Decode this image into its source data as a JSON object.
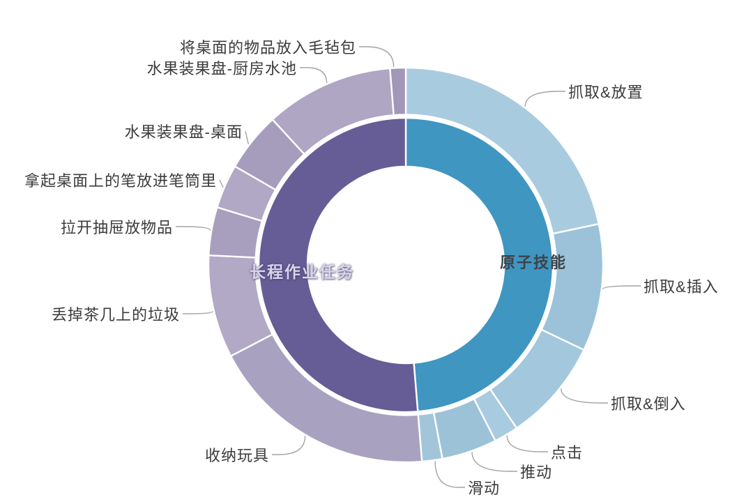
{
  "center_labels": {
    "atomic": "原子技能",
    "long_horizon": "长程作业任务"
  },
  "chart_data": {
    "type": "pie",
    "subtype": "two-level-sunburst-donut",
    "background": "#ffffff",
    "legend": "none",
    "gridlines": "none",
    "inner_ring": [
      {
        "label": "原子技能",
        "angle_start_deg": 0,
        "angle_end_deg": 175.3,
        "share_pct": 48.7,
        "color": "#3f96c1"
      },
      {
        "label": "长程作业任务",
        "angle_start_deg": 175.3,
        "angle_end_deg": 360,
        "share_pct": 51.3,
        "color": "#665d96"
      }
    ],
    "outer_ring": [
      {
        "label": "抓取&放置",
        "parent": "原子技能",
        "angle_start_deg": 0,
        "angle_end_deg": 78,
        "share_pct": 21.7,
        "color": "#a9cbdf"
      },
      {
        "label": "抓取&插入",
        "parent": "原子技能",
        "angle_start_deg": 78,
        "angle_end_deg": 115.5,
        "share_pct": 10.4,
        "color": "#9bc2d8"
      },
      {
        "label": "抓取&倒入",
        "parent": "原子技能",
        "angle_start_deg": 115.5,
        "angle_end_deg": 145.8,
        "share_pct": 8.4,
        "color": "#a3c8dd"
      },
      {
        "label": "点击",
        "parent": "原子技能",
        "angle_start_deg": 145.8,
        "angle_end_deg": 153,
        "share_pct": 2.0,
        "color": "#a9cbdf"
      },
      {
        "label": "推动",
        "parent": "原子技能",
        "angle_start_deg": 153,
        "angle_end_deg": 169.3,
        "share_pct": 4.5,
        "color": "#9cc2d8"
      },
      {
        "label": "滑动",
        "parent": "原子技能",
        "angle_start_deg": 169.3,
        "angle_end_deg": 175.3,
        "share_pct": 1.7,
        "color": "#a2c5d9"
      },
      {
        "label": "收纳玩具",
        "parent": "长程作业任务",
        "angle_start_deg": 175.3,
        "angle_end_deg": 242.5,
        "share_pct": 18.7,
        "color": "#a9a1c0"
      },
      {
        "label": "丢掉茶几上的垃圾",
        "parent": "长程作业任务",
        "angle_start_deg": 242.5,
        "angle_end_deg": 272.8,
        "share_pct": 8.4,
        "color": "#b1a9c6"
      },
      {
        "label": "拉开抽屉放物品",
        "parent": "长程作业任务",
        "angle_start_deg": 272.8,
        "angle_end_deg": 287,
        "share_pct": 3.9,
        "color": "#a89fbf"
      },
      {
        "label": "拿起桌面上的笔放进笔筒里",
        "parent": "长程作业任务",
        "angle_start_deg": 287,
        "angle_end_deg": 300,
        "share_pct": 3.6,
        "color": "#b0a8c5"
      },
      {
        "label": "水果装果盘-桌面",
        "parent": "长程作业任务",
        "angle_start_deg": 300,
        "angle_end_deg": 317.5,
        "share_pct": 4.9,
        "color": "#a69dbd"
      },
      {
        "label": "水果装果盘-厨房水池",
        "parent": "长程作业任务",
        "angle_start_deg": 317.5,
        "angle_end_deg": 355.4,
        "share_pct": 10.5,
        "color": "#aea6c3"
      },
      {
        "label": "将桌面的物品放入毛毡包",
        "parent": "长程作业任务",
        "angle_start_deg": 355.4,
        "angle_end_deg": 360,
        "share_pct": 1.3,
        "color": "#a197b9"
      }
    ]
  }
}
